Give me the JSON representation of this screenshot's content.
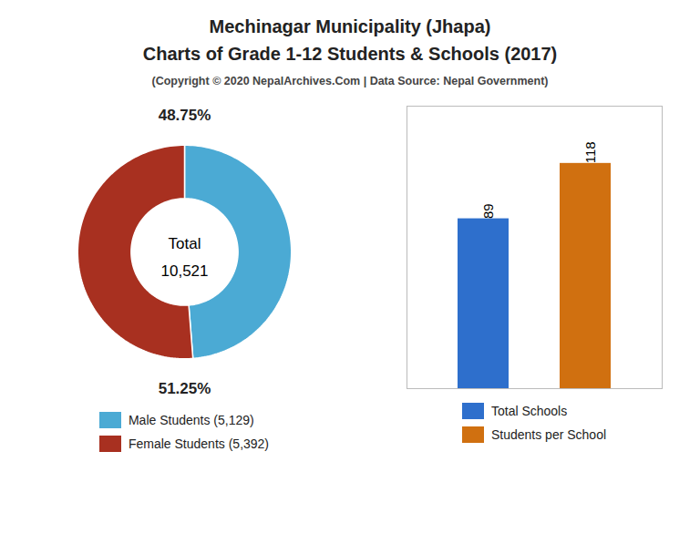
{
  "chart_data": [
    {
      "type": "pie",
      "title": "Mechinagar Municipality (Jhapa)\nCharts of Grade 1-12 Students & Schools (2017)",
      "subtitle": "(Copyright © 2020 NepalArchives.Com | Data Source: Nepal Government)",
      "categories": [
        "Male Students (5,129)",
        "Female Students (5,392)"
      ],
      "values": [
        48.75,
        51.25
      ],
      "value_labels": [
        "48.75%",
        "51.25%"
      ],
      "colors": [
        "#4baad4",
        "#a83020"
      ],
      "data_labels": true,
      "legend": "bottom",
      "annotations": [
        "Total",
        "10,521"
      ]
    },
    {
      "type": "bar",
      "categories": [
        "Total Schools",
        "Students per School"
      ],
      "values": [
        89,
        118
      ],
      "colors": [
        "#2e6fcc",
        "#d07010"
      ],
      "ylim": [
        0,
        148
      ],
      "data_labels": true,
      "tick_labels": false,
      "legend": "bottom"
    }
  ]
}
